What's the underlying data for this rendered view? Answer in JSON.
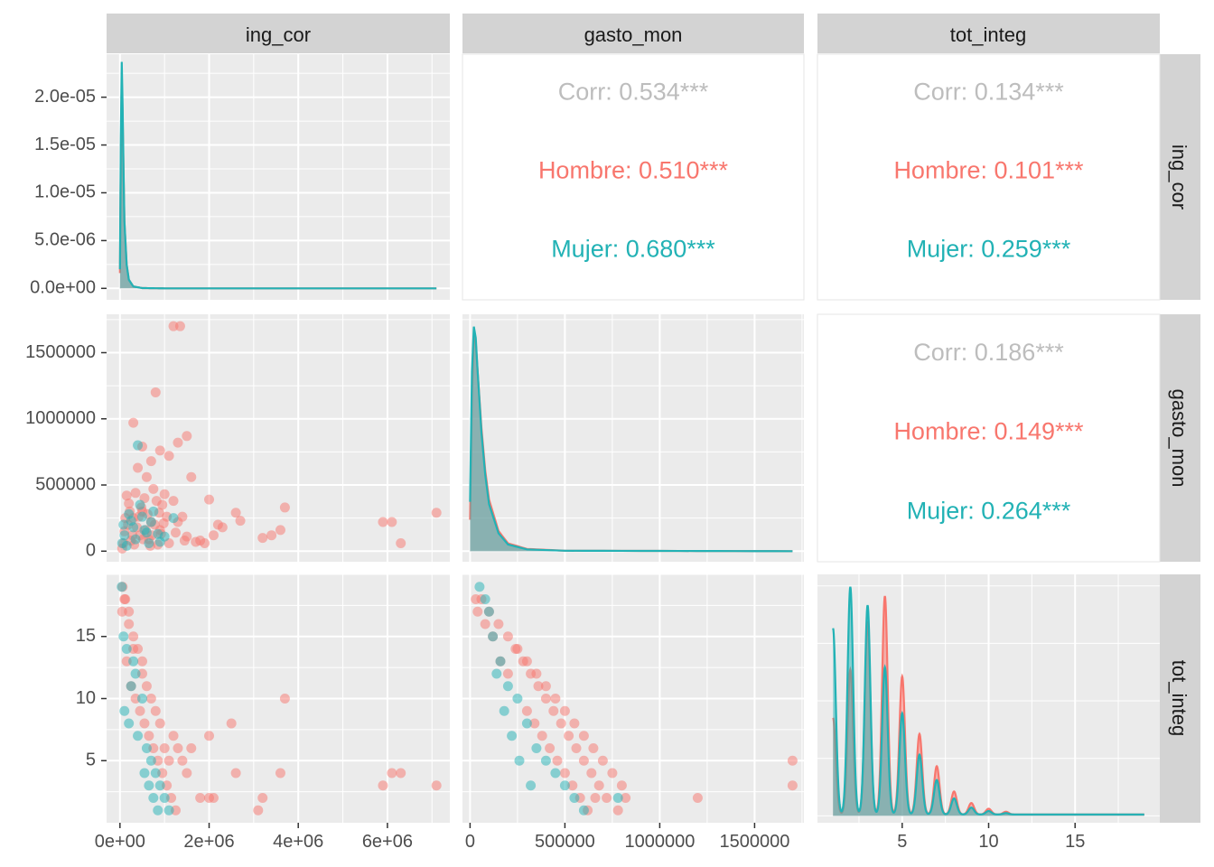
{
  "chart_data": {
    "type": "scatter",
    "variables": [
      "ing_cor",
      "gasto_mon",
      "tot_integ"
    ],
    "groups": [
      {
        "name": "Hombre",
        "color": "#F8766D"
      },
      {
        "name": "Mujer",
        "color": "#00BFC4"
      }
    ],
    "colors": {
      "hombre": "#F8766D",
      "mujer": "#22B2B5",
      "corr": "#BDBDBD",
      "panel_bg": "#EBEBEB",
      "strip_bg": "#D3D3D3",
      "grid": "#FFFFFF"
    },
    "strips": {
      "top": [
        "ing_cor",
        "gasto_mon",
        "tot_integ"
      ],
      "right": [
        "ing_cor",
        "gasto_mon",
        "tot_integ"
      ]
    },
    "axes": {
      "x": [
        {
          "var": "ing_cor",
          "range": [
            -300000,
            7400000
          ],
          "ticks": [
            0,
            2000000,
            4000000,
            6000000
          ],
          "tick_labels": [
            "0e+00",
            "2e+06",
            "4e+06",
            "6e+06"
          ]
        },
        {
          "var": "gasto_mon",
          "range": [
            -40000,
            1760000
          ],
          "ticks": [
            0,
            500000,
            1000000,
            1500000
          ],
          "tick_labels": [
            "0",
            "500000",
            "1000000",
            "1500000"
          ]
        },
        {
          "var": "tot_integ",
          "range": [
            0.1,
            19.9
          ],
          "ticks": [
            5,
            10,
            15
          ],
          "tick_labels": [
            "5",
            "10",
            "15"
          ]
        }
      ],
      "y": [
        {
          "var": "ing_cor",
          "range": [
            -1.2e-06,
            2.45e-05
          ],
          "ticks": [
            0,
            5e-06,
            1e-05,
            1.5e-05,
            2e-05
          ],
          "tick_labels": [
            "0.0e+00",
            "5.0e-06",
            "1.0e-05",
            "1.5e-05",
            "2.0e-05"
          ]
        },
        {
          "var": "gasto_mon",
          "range": [
            -80000,
            1790000
          ],
          "ticks": [
            0,
            500000,
            1000000,
            1500000
          ],
          "tick_labels": [
            "0",
            "500000",
            "1000000",
            "1500000"
          ]
        },
        {
          "var": "tot_integ",
          "range": [
            0,
            20
          ],
          "ticks": [
            5,
            10,
            15
          ],
          "tick_labels": [
            "5",
            "10",
            "15"
          ]
        }
      ]
    },
    "correlations": [
      {
        "row": 0,
        "col": 1,
        "overall": "Corr: 0.534***",
        "hombre": "Hombre: 0.510***",
        "mujer": "Mujer: 0.680***"
      },
      {
        "row": 0,
        "col": 2,
        "overall": "Corr: 0.134***",
        "hombre": "Hombre: 0.101***",
        "mujer": "Mujer: 0.259***"
      },
      {
        "row": 1,
        "col": 2,
        "overall": "Corr: 0.186***",
        "hombre": "Hombre: 0.149***",
        "mujer": "Mujer: 0.264***"
      }
    ],
    "density_ing_cor": {
      "x": [
        0,
        20000,
        40000,
        60000,
        80000,
        100000,
        150000,
        200000,
        300000,
        500000,
        1000000,
        7100000
      ],
      "hombre": [
        1.6e-06,
        1.4e-05,
        2.2e-05,
        1.8e-05,
        1.2e-05,
        7e-06,
        2.5e-06,
        9e-07,
        2e-07,
        3e-08,
        0,
        0
      ],
      "mujer": [
        2e-06,
        1.6e-05,
        2.37e-05,
        1.9e-05,
        1.25e-05,
        7e-06,
        2.5e-06,
        9e-07,
        2e-07,
        3e-08,
        0,
        0
      ]
    },
    "density_gasto_mon": {
      "x": [
        0,
        10000,
        20000,
        30000,
        40000,
        60000,
        80000,
        100000,
        150000,
        200000,
        300000,
        500000,
        1700000
      ],
      "hombre": [
        0.14,
        0.7,
        0.96,
        0.93,
        0.8,
        0.55,
        0.36,
        0.23,
        0.09,
        0.035,
        0.01,
        0.002,
        0
      ],
      "mujer": [
        0.22,
        0.8,
        1.0,
        0.95,
        0.8,
        0.53,
        0.34,
        0.21,
        0.08,
        0.03,
        0.008,
        0.002,
        0
      ],
      "y_label_scale_max": 1700000
    },
    "density_tot_integ": {
      "peaks_x": [
        1,
        2,
        3,
        4,
        5,
        6,
        7,
        8,
        9,
        10,
        11
      ],
      "hombre": [
        0.42,
        0.63,
        0.84,
        0.95,
        0.6,
        0.35,
        0.21,
        0.1,
        0.05,
        0.025,
        0.012
      ],
      "mujer": [
        0.81,
        0.99,
        0.91,
        0.64,
        0.44,
        0.26,
        0.15,
        0.07,
        0.03,
        0.015,
        0.006
      ],
      "xmax": 19,
      "ymax": 1.05
    },
    "scatter_ing_gasto": {
      "hombre": [
        [
          1200000,
          1700000
        ],
        [
          1350000,
          1700000
        ],
        [
          800000,
          1200000
        ],
        [
          300000,
          970000
        ],
        [
          500000,
          790000
        ],
        [
          900000,
          760000
        ],
        [
          1100000,
          720000
        ],
        [
          1500000,
          870000
        ],
        [
          1300000,
          820000
        ],
        [
          700000,
          680000
        ],
        [
          1600000,
          560000
        ],
        [
          2000000,
          390000
        ],
        [
          2600000,
          290000
        ],
        [
          2700000,
          230000
        ],
        [
          3700000,
          330000
        ],
        [
          5900000,
          220000
        ],
        [
          6100000,
          220000
        ],
        [
          6300000,
          60000
        ],
        [
          7100000,
          290000
        ],
        [
          3400000,
          120000
        ],
        [
          3200000,
          100000
        ],
        [
          3600000,
          160000
        ],
        [
          2300000,
          180000
        ],
        [
          2100000,
          120000
        ],
        [
          1800000,
          80000
        ],
        [
          1700000,
          70000
        ],
        [
          2200000,
          200000
        ],
        [
          1400000,
          260000
        ],
        [
          1000000,
          430000
        ],
        [
          1200000,
          380000
        ],
        [
          600000,
          560000
        ],
        [
          400000,
          630000
        ],
        [
          200000,
          360000
        ],
        [
          100000,
          150000
        ],
        [
          300000,
          250000
        ],
        [
          500000,
          300000
        ],
        [
          700000,
          220000
        ],
        [
          900000,
          160000
        ],
        [
          1100000,
          60000
        ],
        [
          250000,
          80000
        ],
        [
          450000,
          120000
        ],
        [
          650000,
          90000
        ],
        [
          850000,
          50000
        ],
        [
          1250000,
          140000
        ],
        [
          1500000,
          110000
        ],
        [
          1900000,
          60000
        ],
        [
          150000,
          420000
        ],
        [
          350000,
          440000
        ],
        [
          550000,
          400000
        ],
        [
          750000,
          470000
        ],
        [
          950000,
          350000
        ],
        [
          1050000,
          260000
        ],
        [
          1300000,
          220000
        ],
        [
          1450000,
          80000
        ],
        [
          50000,
          20000
        ],
        [
          80000,
          60000
        ],
        [
          120000,
          250000
        ],
        [
          180000,
          200000
        ],
        [
          220000,
          300000
        ],
        [
          280000,
          120000
        ],
        [
          320000,
          50000
        ],
        [
          380000,
          180000
        ],
        [
          420000,
          260000
        ],
        [
          480000,
          330000
        ],
        [
          520000,
          90000
        ],
        [
          580000,
          160000
        ],
        [
          620000,
          280000
        ],
        [
          680000,
          40000
        ],
        [
          720000,
          120000
        ],
        [
          780000,
          200000
        ],
        [
          820000,
          380000
        ],
        [
          880000,
          290000
        ],
        [
          920000,
          130000
        ],
        [
          980000,
          210000
        ]
      ],
      "mujer": [
        [
          400000,
          800000
        ],
        [
          200000,
          280000
        ],
        [
          500000,
          260000
        ],
        [
          300000,
          180000
        ],
        [
          100000,
          120000
        ],
        [
          50000,
          60000
        ],
        [
          700000,
          220000
        ],
        [
          600000,
          140000
        ],
        [
          900000,
          70000
        ],
        [
          1200000,
          250000
        ],
        [
          450000,
          350000
        ],
        [
          350000,
          90000
        ],
        [
          150000,
          40000
        ],
        [
          250000,
          230000
        ],
        [
          550000,
          160000
        ],
        [
          650000,
          60000
        ],
        [
          850000,
          130000
        ],
        [
          1000000,
          110000
        ],
        [
          750000,
          300000
        ],
        [
          80000,
          200000
        ]
      ]
    },
    "scatter_ing_tot": {
      "hombre": [
        [
          3700000,
          10
        ],
        [
          2500000,
          8
        ],
        [
          2600000,
          4
        ],
        [
          3600000,
          4
        ],
        [
          6100000,
          4
        ],
        [
          6300000,
          4
        ],
        [
          5900000,
          3
        ],
        [
          7100000,
          3
        ],
        [
          3200000,
          2
        ],
        [
          3100000,
          1
        ],
        [
          2000000,
          2
        ],
        [
          2100000,
          2
        ],
        [
          1800000,
          2
        ],
        [
          1500000,
          4
        ],
        [
          1400000,
          5
        ],
        [
          1600000,
          6
        ],
        [
          1300000,
          6
        ],
        [
          2000000,
          7
        ],
        [
          1200000,
          7
        ],
        [
          900000,
          8
        ],
        [
          800000,
          9
        ],
        [
          600000,
          11
        ],
        [
          500000,
          12
        ],
        [
          400000,
          14
        ],
        [
          300000,
          15
        ],
        [
          200000,
          16
        ],
        [
          100000,
          18
        ],
        [
          50000,
          17
        ],
        [
          150000,
          13
        ],
        [
          250000,
          11
        ],
        [
          350000,
          10
        ],
        [
          450000,
          9
        ],
        [
          550000,
          8
        ],
        [
          650000,
          7
        ],
        [
          750000,
          6
        ],
        [
          850000,
          5
        ],
        [
          950000,
          4
        ],
        [
          1050000,
          3
        ],
        [
          1150000,
          2
        ],
        [
          1250000,
          1
        ],
        [
          1100000,
          5
        ],
        [
          1000000,
          6
        ],
        [
          700000,
          10
        ],
        [
          500000,
          13
        ],
        [
          300000,
          14
        ],
        [
          200000,
          17
        ],
        [
          120000,
          18
        ],
        [
          60000,
          19
        ]
      ],
      "mujer": [
        [
          40000,
          19
        ],
        [
          80000,
          15
        ],
        [
          150000,
          14
        ],
        [
          300000,
          13
        ],
        [
          500000,
          10
        ],
        [
          200000,
          8
        ],
        [
          400000,
          7
        ],
        [
          600000,
          6
        ],
        [
          700000,
          5
        ],
        [
          800000,
          4
        ],
        [
          900000,
          3
        ],
        [
          1000000,
          2
        ],
        [
          1100000,
          1
        ],
        [
          250000,
          11
        ],
        [
          350000,
          12
        ],
        [
          100000,
          9
        ],
        [
          550000,
          4
        ],
        [
          650000,
          3
        ],
        [
          750000,
          2
        ],
        [
          850000,
          1
        ]
      ]
    },
    "scatter_gasto_tot": {
      "hombre": [
        [
          1700000,
          5
        ],
        [
          1700000,
          3
        ],
        [
          1200000,
          2
        ],
        [
          800000,
          3
        ],
        [
          750000,
          4
        ],
        [
          700000,
          5
        ],
        [
          650000,
          6
        ],
        [
          600000,
          7
        ],
        [
          550000,
          8
        ],
        [
          500000,
          9
        ],
        [
          450000,
          10
        ],
        [
          400000,
          11
        ],
        [
          350000,
          12
        ],
        [
          300000,
          13
        ],
        [
          250000,
          14
        ],
        [
          200000,
          15
        ],
        [
          150000,
          16
        ],
        [
          100000,
          17
        ],
        [
          60000,
          18
        ],
        [
          30000,
          18
        ],
        [
          820000,
          2
        ],
        [
          780000,
          1
        ],
        [
          720000,
          2
        ],
        [
          680000,
          3
        ],
        [
          640000,
          4
        ],
        [
          600000,
          5
        ],
        [
          560000,
          6
        ],
        [
          520000,
          7
        ],
        [
          480000,
          8
        ],
        [
          440000,
          9
        ],
        [
          400000,
          10
        ],
        [
          360000,
          11
        ],
        [
          320000,
          12
        ],
        [
          280000,
          13
        ],
        [
          240000,
          14
        ],
        [
          200000,
          12
        ],
        [
          160000,
          13
        ],
        [
          120000,
          15
        ],
        [
          80000,
          16
        ],
        [
          40000,
          17
        ],
        [
          580000,
          2
        ],
        [
          620000,
          1
        ],
        [
          660000,
          2
        ],
        [
          540000,
          3
        ],
        [
          500000,
          4
        ],
        [
          460000,
          5
        ],
        [
          420000,
          6
        ],
        [
          380000,
          7
        ],
        [
          340000,
          8
        ],
        [
          300000,
          9
        ]
      ],
      "mujer": [
        [
          80000,
          18
        ],
        [
          100000,
          17
        ],
        [
          120000,
          15
        ],
        [
          160000,
          13
        ],
        [
          200000,
          11
        ],
        [
          250000,
          10
        ],
        [
          300000,
          8
        ],
        [
          350000,
          6
        ],
        [
          400000,
          5
        ],
        [
          450000,
          4
        ],
        [
          500000,
          3
        ],
        [
          550000,
          2
        ],
        [
          780000,
          2
        ],
        [
          600000,
          1
        ],
        [
          140000,
          12
        ],
        [
          180000,
          9
        ],
        [
          220000,
          7
        ],
        [
          260000,
          5
        ],
        [
          320000,
          3
        ],
        [
          50000,
          19
        ]
      ]
    }
  }
}
